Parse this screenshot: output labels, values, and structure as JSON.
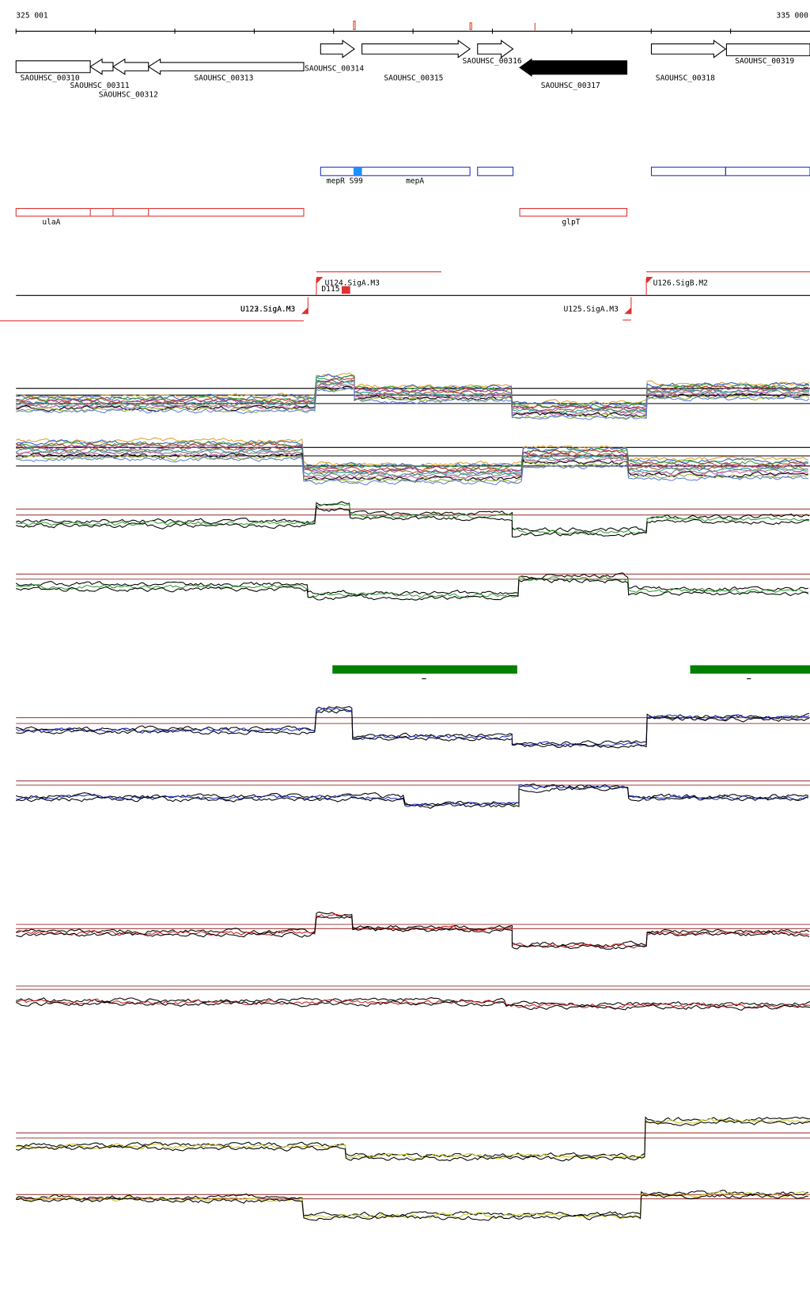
{
  "ruler": {
    "start": "325 001",
    "end": "335 000"
  },
  "genes": [
    {
      "label": "SAOUHSC_00310"
    },
    {
      "label": "SAOUHSC_00311"
    },
    {
      "label": "SAOUHSC_00312"
    },
    {
      "label": "SAOUHSC_00313"
    },
    {
      "label": "SAOUHSC_00314"
    },
    {
      "label": "SAOUHSC_00315"
    },
    {
      "label": "SAOUHSC_00316"
    },
    {
      "label": "SAOUHSC_00317"
    },
    {
      "label": "SAOUHSC_00318"
    },
    {
      "label": "SAOUHSC_00319"
    }
  ],
  "features": [
    {
      "label": "mepR"
    },
    {
      "label": "S99"
    },
    {
      "label": "mepA"
    }
  ],
  "operons": [
    {
      "label": "ulaA"
    },
    {
      "label": "glpT"
    }
  ],
  "promoters": [
    {
      "label": "U124.SigA.M3"
    },
    {
      "label": "D115"
    },
    {
      "label": "U122.SigA.M3"
    },
    {
      "label": "U123.SigA.M3"
    },
    {
      "label": "U125.SigA.M3"
    },
    {
      "label": "U126.SigB.M2"
    }
  ]
}
